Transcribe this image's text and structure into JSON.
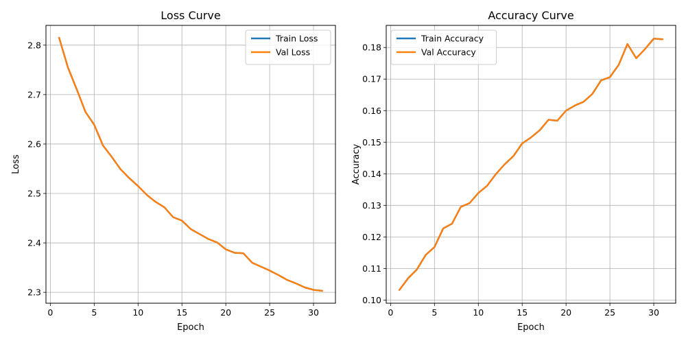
{
  "chart_data": [
    {
      "type": "line",
      "title": "Loss Curve",
      "xlabel": "Epoch",
      "ylabel": "Loss",
      "xlim": [
        -0.5,
        32.5
      ],
      "ylim": [
        2.278,
        2.84
      ],
      "xticks": [
        0,
        5,
        10,
        15,
        20,
        25,
        30
      ],
      "yticks": [
        2.3,
        2.4,
        2.5,
        2.6,
        2.7,
        2.8
      ],
      "ytick_decimals": 1,
      "grid": true,
      "legend_position": "top-right",
      "x": [
        1,
        2,
        3,
        4,
        5,
        6,
        7,
        8,
        9,
        10,
        11,
        12,
        13,
        14,
        15,
        16,
        17,
        18,
        19,
        20,
        21,
        22,
        23,
        24,
        25,
        26,
        27,
        28,
        29,
        30,
        31
      ],
      "series": [
        {
          "name": "Train Loss",
          "color": "#1f77b4",
          "values": [
            2.815,
            2.755,
            2.711,
            2.665,
            2.639,
            2.597,
            2.574,
            2.549,
            2.531,
            2.515,
            2.497,
            2.483,
            2.472,
            2.452,
            2.445,
            2.428,
            2.418,
            2.408,
            2.401,
            2.387,
            2.38,
            2.379,
            2.36,
            2.352,
            2.344,
            2.335,
            2.325,
            2.318,
            2.31,
            2.305,
            2.303
          ]
        },
        {
          "name": "Val Loss",
          "color": "#ff7f0e",
          "values": [
            2.815,
            2.755,
            2.711,
            2.665,
            2.639,
            2.597,
            2.574,
            2.549,
            2.531,
            2.515,
            2.497,
            2.483,
            2.472,
            2.452,
            2.445,
            2.428,
            2.418,
            2.408,
            2.401,
            2.387,
            2.38,
            2.379,
            2.36,
            2.352,
            2.344,
            2.335,
            2.325,
            2.318,
            2.31,
            2.305,
            2.303
          ]
        }
      ]
    },
    {
      "type": "line",
      "title": "Accuracy Curve",
      "xlabel": "Epoch",
      "ylabel": "Accuracy",
      "xlim": [
        -0.5,
        32.5
      ],
      "ylim": [
        0.099,
        0.187
      ],
      "xticks": [
        0,
        5,
        10,
        15,
        20,
        25,
        30
      ],
      "yticks": [
        0.1,
        0.11,
        0.12,
        0.13,
        0.14,
        0.15,
        0.16,
        0.17,
        0.18
      ],
      "ytick_decimals": 2,
      "grid": true,
      "legend_position": "top-left",
      "x": [
        1,
        2,
        3,
        4,
        5,
        6,
        7,
        8,
        9,
        10,
        11,
        12,
        13,
        14,
        15,
        16,
        17,
        18,
        19,
        20,
        21,
        22,
        23,
        24,
        25,
        26,
        27,
        28,
        29,
        30,
        31
      ],
      "series": [
        {
          "name": "Train Accuracy",
          "color": "#1f77b4",
          "values": [
            0.1032,
            0.1069,
            0.1097,
            0.1143,
            0.1168,
            0.1227,
            0.1242,
            0.1295,
            0.1307,
            0.1339,
            0.1362,
            0.1399,
            0.143,
            0.1456,
            0.1496,
            0.1515,
            0.1538,
            0.1571,
            0.1568,
            0.16,
            0.1616,
            0.1628,
            0.1653,
            0.1696,
            0.1706,
            0.1745,
            0.1811,
            0.1766,
            0.1795,
            0.1828,
            0.1826
          ]
        },
        {
          "name": "Val Accuracy",
          "color": "#ff7f0e",
          "values": [
            0.1032,
            0.1069,
            0.1097,
            0.1143,
            0.1168,
            0.1227,
            0.1242,
            0.1295,
            0.1307,
            0.1339,
            0.1362,
            0.1399,
            0.143,
            0.1456,
            0.1496,
            0.1515,
            0.1538,
            0.1571,
            0.1568,
            0.16,
            0.1616,
            0.1628,
            0.1653,
            0.1696,
            0.1706,
            0.1745,
            0.1811,
            0.1766,
            0.1795,
            0.1828,
            0.1826
          ]
        }
      ]
    }
  ]
}
